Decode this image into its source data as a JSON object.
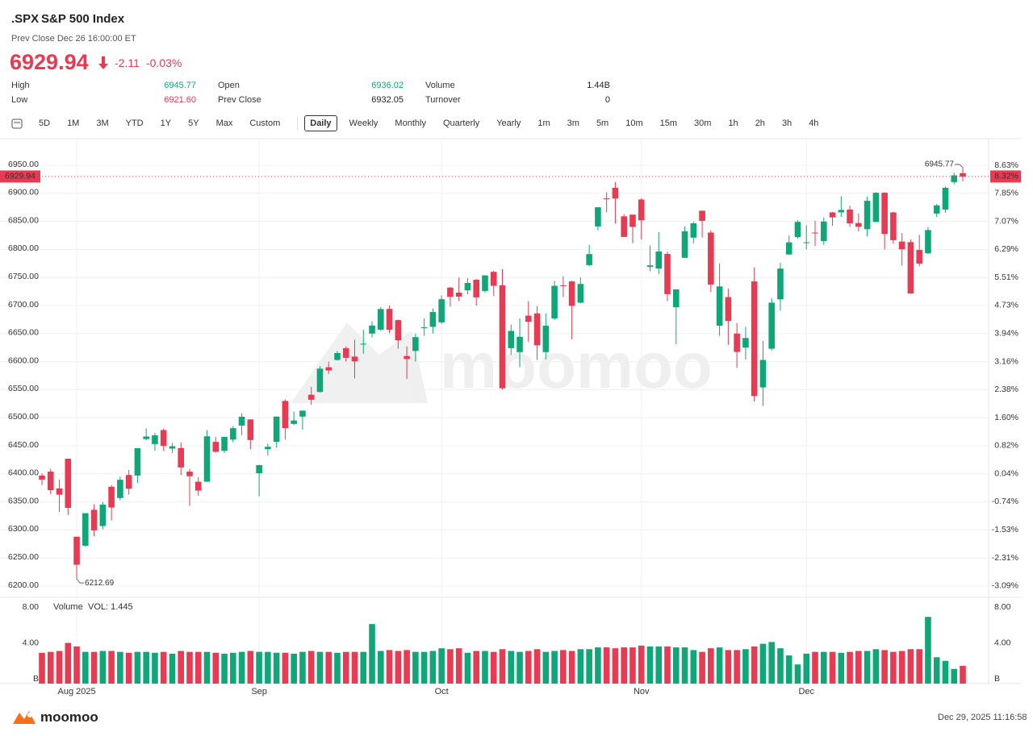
{
  "header": {
    "symbol": ".SPX",
    "name": "S&P 500 Index",
    "prev_close_time": "Prev Close Dec 26 16:00:00 ET",
    "price": "6929.94",
    "change": "-2.11",
    "change_pct": "-0.03%",
    "color": "#e83a53"
  },
  "stats": [
    [
      {
        "label": "High",
        "value": "6945.77",
        "color": "#10a778"
      },
      {
        "label": "Open",
        "value": "6936.02",
        "color": "#10a778"
      },
      {
        "label": "Volume",
        "value": "1.44B",
        "color": "#222222"
      }
    ],
    [
      {
        "label": "Low",
        "value": "6921.60",
        "color": "#e83a53"
      },
      {
        "label": "Prev Close",
        "value": "6932.05",
        "color": "#222222"
      },
      {
        "label": "Turnover",
        "value": "0",
        "color": "#222222"
      }
    ]
  ],
  "ranges": [
    "5D",
    "1M",
    "3M",
    "YTD",
    "1Y",
    "5Y",
    "Max",
    "Custom"
  ],
  "intervals": [
    "Daily",
    "Weekly",
    "Monthly",
    "Quarterly",
    "Yearly",
    "1m",
    "3m",
    "5m",
    "10m",
    "15m",
    "30m",
    "1h",
    "2h",
    "3h",
    "4h"
  ],
  "active_interval": 0,
  "chart_data": [
    {
      "type": "candlestick",
      "categories": [
        null,
        null,
        null,
        null,
        "Aug 2025",
        null,
        null,
        null,
        null,
        null,
        null,
        null,
        null,
        null,
        null,
        null,
        null,
        null,
        null,
        null,
        null,
        null,
        null,
        null,
        null,
        "Sep",
        null,
        null,
        null,
        null,
        null,
        null,
        null,
        null,
        null,
        null,
        null,
        null,
        null,
        null,
        null,
        null,
        null,
        null,
        null,
        null,
        "Oct",
        null,
        null,
        null,
        null,
        null,
        null,
        null,
        null,
        null,
        null,
        null,
        null,
        null,
        null,
        null,
        null,
        null,
        null,
        null,
        null,
        null,
        null,
        "Nov",
        null,
        null,
        null,
        null,
        null,
        null,
        null,
        null,
        null,
        null,
        null,
        null,
        null,
        null,
        null,
        null,
        null,
        null,
        "Dec",
        null,
        null,
        null,
        null,
        null,
        null,
        null,
        null,
        null,
        null,
        null,
        null,
        null,
        null,
        null,
        null,
        null,
        null
      ],
      "open": [
        6397,
        6404,
        6374,
        6427,
        6288,
        6272,
        6336,
        6307,
        6377,
        6357,
        6398,
        6397,
        6462,
        6453,
        6478,
        6445,
        6446,
        6404,
        6386,
        6386,
        6457,
        6441,
        6461,
        6486,
        6497,
        6401,
        6444,
        6457,
        6530,
        6489,
        6502,
        6541,
        6546,
        6590,
        6603,
        6624,
        6609,
        6631,
        6650,
        6657,
        6694,
        6674,
        6610,
        6619,
        6661,
        6662,
        6670,
        6732,
        6723,
        6727,
        6746,
        6726,
        6760,
        6736,
        6624,
        6617,
        6682,
        6686,
        6617,
        6677,
        6736,
        6743,
        6705,
        6772,
        6841,
        6891,
        6910,
        6859,
        6862,
        6889,
        6769,
        6766,
        6792,
        6697,
        6785,
        6821,
        6869,
        6830,
        6664,
        6715,
        6650,
        6625,
        6743,
        6554,
        6623,
        6711,
        6791,
        6822,
        6812,
        6830,
        6815,
        6866,
        6866,
        6871,
        6847,
        6836,
        6849,
        6901,
        6866,
        6814,
        6813,
        6799,
        6793,
        6864,
        6871,
        6920,
        6936.02
      ],
      "high": [
        6401,
        6409,
        6390,
        6427,
        6288,
        6330,
        6346,
        6350,
        6380,
        6395,
        6407,
        6446,
        6481,
        6473,
        6481,
        6455,
        6456,
        6409,
        6394,
        6478,
        6466,
        6466,
        6485,
        6508,
        6497,
        6416,
        6454,
        6502,
        6533,
        6511,
        6513,
        6555,
        6592,
        6600,
        6619,
        6627,
        6639,
        6657,
        6672,
        6697,
        6700,
        6675,
        6627,
        6650,
        6677,
        6695,
        6718,
        6733,
        6750,
        6749,
        6747,
        6754,
        6762,
        6765,
        6666,
        6677,
        6708,
        6699,
        6686,
        6744,
        6752,
        6744,
        6750,
        6808,
        6875,
        6902,
        6920,
        6863,
        6862,
        6891,
        6807,
        6831,
        6796,
        6729,
        6841,
        6849,
        6869,
        6834,
        6775,
        6730,
        6669,
        6662,
        6768,
        6637,
        6713,
        6776,
        6825,
        6852,
        6843,
        6851,
        6857,
        6867,
        6895,
        6878,
        6864,
        6894,
        6902,
        6902,
        6867,
        6829,
        6818,
        6826,
        6840,
        6881,
        6912,
        6937,
        6945.77
      ],
      "low": [
        6380,
        6364,
        6332,
        6327,
        6212.69,
        6270,
        6289,
        6301,
        6317,
        6353,
        6363,
        6384,
        6460,
        6441,
        6441,
        6437,
        6398,
        6343,
        6361,
        6386,
        6438,
        6437,
        6456,
        6469,
        6444,
        6360,
        6433,
        6447,
        6461,
        6487,
        6479,
        6523,
        6545,
        6578,
        6602,
        6600,
        6570,
        6614,
        6643,
        6655,
        6651,
        6623,
        6569,
        6600,
        6646,
        6650,
        6667,
        6698,
        6708,
        6720,
        6700,
        6723,
        6717,
        6550,
        6612,
        6590,
        6635,
        6603,
        6604,
        6674,
        6715,
        6640,
        6704,
        6770,
        6834,
        6866,
        6846,
        6822,
        6811,
        6818,
        6761,
        6756,
        6708,
        6631,
        6785,
        6811,
        6821,
        6724,
        6646,
        6630,
        6589,
        6604,
        6529,
        6521,
        6620,
        6691,
        6790,
        6819,
        6800,
        6806,
        6808,
        6842,
        6858,
        6840,
        6832,
        6823,
        6848,
        6800,
        6810,
        6771,
        6721,
        6770,
        6792,
        6858,
        6865,
        6916,
        6921.6
      ],
      "close": [
        6389.77,
        6370.86,
        6362.9,
        6339.39,
        6238.01,
        6329.94,
        6299.19,
        6345.06,
        6340,
        6389.45,
        6373.45,
        6445.76,
        6466.58,
        6468.54,
        6449.8,
        6449.15,
        6411.37,
        6395.78,
        6370.17,
        6466.91,
        6439.32,
        6465.94,
        6481.4,
        6501.86,
        6460.26,
        6415.54,
        6448.26,
        6502.08,
        6481.5,
        6495.15,
        6512.61,
        6532.04,
        6587.47,
        6584.29,
        6615.28,
        6606.76,
        6600.35,
        6631.96,
        6664.36,
        6693.75,
        6656.92,
        6637.97,
        6604.72,
        6643.7,
        6661.21,
        6688.46,
        6711.2,
        6715.35,
        6715.79,
        6740.28,
        6714.59,
        6753.72,
        6735.11,
        6552.51,
        6654.72,
        6644.31,
        6671.06,
        6629.07,
        6664.01,
        6735.13,
        6735.35,
        6699.4,
        6738.44,
        6791.69,
        6875.16,
        6890.89,
        6890.59,
        6822.34,
        6840.2,
        6851.97,
        6771.55,
        6796.29,
        6720.32,
        6728.8,
        6832.43,
        6846.61,
        6850.92,
        6737.49,
        6734.11,
        6672.41,
        6617.32,
        6642.16,
        6538.76,
        6602.99,
        6705.12,
        6765.88,
        6812.61,
        6849.09,
        6812.63,
        6829.37,
        6849.72,
        6857.12,
        6870.4,
        6846.51,
        6840.51,
        6886.68,
        6901,
        6827.41,
        6816.51,
        6800.26,
        6721.43,
        6774.76,
        6834.5,
        6878.49,
        6909.79,
        6932.05,
        6929.94
      ],
      "up_color": "#10a778",
      "down_color": "#e83a53",
      "ylim": [
        6190,
        6985
      ],
      "yticks": [
        {
          "value": 6200,
          "label": "6200.00"
        },
        {
          "value": 6250,
          "label": "6250.00"
        },
        {
          "value": 6300,
          "label": "6300.00"
        },
        {
          "value": 6350,
          "label": "6350.00"
        },
        {
          "value": 6400,
          "label": "6400.00"
        },
        {
          "value": 6450,
          "label": "6450.00"
        },
        {
          "value": 6500,
          "label": "6500.00"
        },
        {
          "value": 6550,
          "label": "6550.00"
        },
        {
          "value": 6600,
          "label": "6600.00"
        },
        {
          "value": 6650,
          "label": "6650.00"
        },
        {
          "value": 6700,
          "label": "6700.00"
        },
        {
          "value": 6750,
          "label": "6750.00"
        },
        {
          "value": 6800,
          "label": "6800.00"
        },
        {
          "value": 6850,
          "label": "6850.00"
        },
        {
          "value": 6900,
          "label": "6900.00"
        },
        {
          "value": 6950,
          "label": "6950.00"
        }
      ],
      "y2lim": [
        -3.25,
        9.18
      ],
      "y2ticks": [
        {
          "value": -3.09,
          "label": "-3.09%"
        },
        {
          "value": -2.31,
          "label": "-2.31%"
        },
        {
          "value": -1.53,
          "label": "-1.53%"
        },
        {
          "value": -0.74,
          "label": "-0.74%"
        },
        {
          "value": 0.04,
          "label": "0.04%"
        },
        {
          "value": 0.82,
          "label": "0.82%"
        },
        {
          "value": 1.6,
          "label": "1.60%"
        },
        {
          "value": 2.38,
          "label": "2.38%"
        },
        {
          "value": 3.16,
          "label": "3.16%"
        },
        {
          "value": 3.94,
          "label": "3.94%"
        },
        {
          "value": 4.73,
          "label": "4.73%"
        },
        {
          "value": 5.51,
          "label": "5.51%"
        },
        {
          "value": 6.29,
          "label": "6.29%"
        },
        {
          "value": 7.07,
          "label": "7.07%"
        },
        {
          "value": 7.85,
          "label": "7.85%"
        },
        {
          "value": 8.63,
          "label": "8.63%"
        }
      ],
      "price_line": 6929.94,
      "price_line_pct": {
        "value": 8.32,
        "label": "8.32%"
      },
      "grid": true
    },
    {
      "type": "bar",
      "title": "Volume",
      "subtitle": "VOL: 1.445",
      "values": [
        2.9,
        3.0,
        3.1,
        4.0,
        3.6,
        3.0,
        3.0,
        3.1,
        3.1,
        3.0,
        2.9,
        3.0,
        3.0,
        2.9,
        3.0,
        2.8,
        3.1,
        3.0,
        3.0,
        3.0,
        2.9,
        2.8,
        2.9,
        3.0,
        3.1,
        3.0,
        3.0,
        2.9,
        2.9,
        2.8,
        3.0,
        3.1,
        3.0,
        3.0,
        2.9,
        3.0,
        3.0,
        3.0,
        6.1,
        3.1,
        3.2,
        3.1,
        3.2,
        3.0,
        3.0,
        3.1,
        3.4,
        3.3,
        3.4,
        2.9,
        3.1,
        3.1,
        3.0,
        3.3,
        3.1,
        3.0,
        3.1,
        3.3,
        3.0,
        3.1,
        3.2,
        3.1,
        3.3,
        3.3,
        3.5,
        3.5,
        3.4,
        3.5,
        3.5,
        3.7,
        3.6,
        3.6,
        3.6,
        3.5,
        3.5,
        3.2,
        3.0,
        3.4,
        3.5,
        3.2,
        3.2,
        3.3,
        3.6,
        3.9,
        4.1,
        3.4,
        2.6,
        1.6,
        2.8,
        3.0,
        3.0,
        3.0,
        2.9,
        3.0,
        3.1,
        3.1,
        3.3,
        3.2,
        3.0,
        3.1,
        3.3,
        3.3,
        6.9,
        2.4,
        2.0,
        1.1,
        1.445
      ],
      "ylim": [
        0,
        9
      ],
      "yticks": [
        {
          "value": 0,
          "label": "B"
        },
        {
          "value": 4,
          "label": "4.00"
        },
        {
          "value": 8,
          "label": "8.00"
        }
      ]
    }
  ],
  "watermark": "moomoo",
  "footer": {
    "brand": "moomoo",
    "timestamp": "Dec 29, 2025 11:16:58"
  }
}
